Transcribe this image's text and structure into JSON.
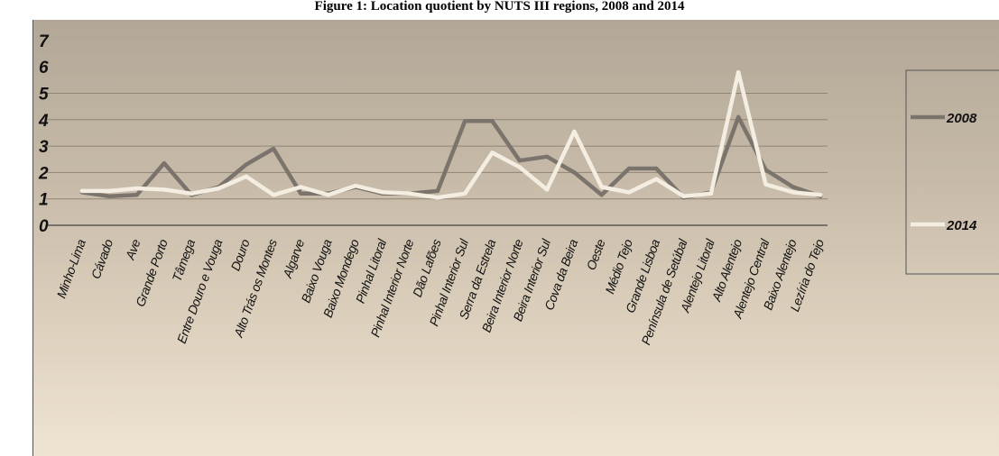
{
  "title": "Figure 1: Location quotient by NUTS III regions, 2008 and 2014",
  "chart_data": {
    "type": "line",
    "title": "Figure 1: Location quotient by NUTS III regions, 2008 and 2014",
    "xlabel": "",
    "ylabel": "",
    "ylim": [
      0,
      7
    ],
    "yticks": [
      "0",
      "1",
      "2",
      "3",
      "4",
      "5",
      "6",
      "7"
    ],
    "grid": true,
    "legend_position": "right",
    "categories": [
      "Minho-Lima",
      "Cávado",
      "Ave",
      "Grande Porto",
      "Tâmega",
      "Entre Douro e Vouga",
      "Douro",
      "Alto Trás os Montes",
      "Algarve",
      "Baixo Vouga",
      "Baixo Mondego",
      "Pinhal Litoral",
      "Pinhal Interior Norte",
      "Dão Lafões",
      "Pinhal Interior Sul",
      "Serra da Estrela",
      "Beira Interior Norte",
      "Beira Interior Sul",
      "Cova da Beira",
      "Oeste",
      "Médio Tejo",
      "Grande Lisboa",
      "Península de Setúbal",
      "Alentejo Litoral",
      "Alto Alentejo",
      "Alentejo Central",
      "Baixo Alentejo",
      "Lezíria do Tejo"
    ],
    "series": [
      {
        "name": "2008",
        "color": "#7a746c",
        "values": [
          1.25,
          1.1,
          1.15,
          2.35,
          1.15,
          1.45,
          2.3,
          2.9,
          1.2,
          1.2,
          1.45,
          1.2,
          1.2,
          1.3,
          3.95,
          3.95,
          2.45,
          2.6,
          2.0,
          1.15,
          2.15,
          2.15,
          1.05,
          1.25,
          4.1,
          2.1,
          1.45,
          1.1
        ]
      },
      {
        "name": "2014",
        "color": "#f4eee2",
        "values": [
          1.3,
          1.3,
          1.4,
          1.35,
          1.2,
          1.4,
          1.85,
          1.15,
          1.45,
          1.15,
          1.5,
          1.25,
          1.2,
          1.05,
          1.2,
          2.75,
          2.2,
          1.35,
          3.55,
          1.45,
          1.25,
          1.75,
          1.1,
          1.2,
          5.8,
          1.55,
          1.25,
          1.15
        ]
      }
    ]
  }
}
